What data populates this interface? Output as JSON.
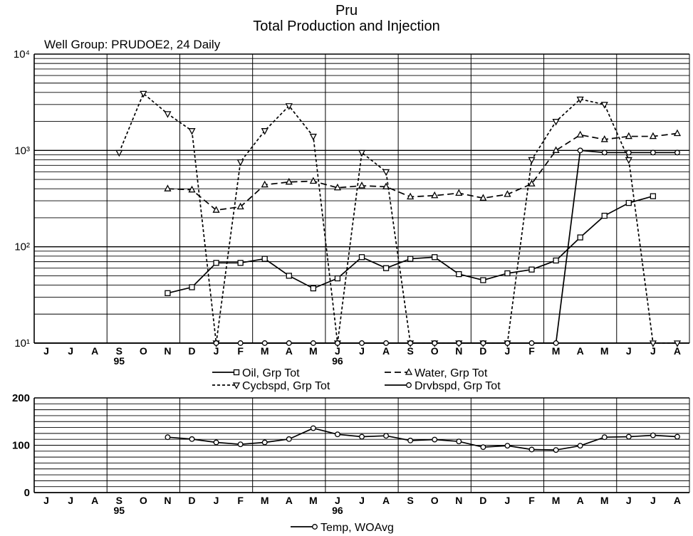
{
  "title": "Pru",
  "subtitle": "Total Production and Injection",
  "group_label": "Well Group: PRUDOE2, 24  Daily",
  "chart_data": [
    {
      "type": "line",
      "yscale": "log",
      "ylim": [
        10,
        10000
      ],
      "y_tick_labels": [
        "10¹",
        "10²",
        "10³",
        "10⁴"
      ],
      "grid": true,
      "months": [
        "J",
        "J",
        "A",
        "S",
        "O",
        "N",
        "D",
        "J",
        "F",
        "M",
        "A",
        "M",
        "J",
        "J",
        "A",
        "S",
        "O",
        "N",
        "D",
        "J",
        "F",
        "M",
        "A",
        "M",
        "J",
        "J",
        "A"
      ],
      "year_labels": [
        {
          "index": 3,
          "text": "95"
        },
        {
          "index": 12,
          "text": "96"
        }
      ],
      "legend": [
        {
          "series": "oil",
          "text": "Oil, Grp Tot"
        },
        {
          "series": "water",
          "text": "Water, Grp Tot"
        },
        {
          "series": "cycbspd",
          "text": "Cycbspd, Grp Tot"
        },
        {
          "series": "drvbspd",
          "text": "Drvbspd, Grp Tot"
        }
      ],
      "series": [
        {
          "id": "oil",
          "marker": "square",
          "dash": "solid",
          "x": [
            5,
            6,
            7,
            8,
            9,
            10,
            11,
            12,
            13,
            14,
            15,
            16,
            17,
            18,
            19,
            20,
            21,
            22,
            23,
            24,
            25
          ],
          "y": [
            33,
            38,
            68,
            68,
            75,
            50,
            37,
            47,
            78,
            60,
            75,
            78,
            52,
            45,
            53,
            58,
            72,
            125,
            210,
            285,
            335
          ]
        },
        {
          "id": "water",
          "marker": "triangle",
          "dash": "longdash",
          "x": [
            5,
            6,
            7,
            8,
            9,
            10,
            11,
            12,
            13,
            14,
            15,
            16,
            17,
            18,
            19,
            20,
            21,
            22,
            23,
            24,
            25,
            26
          ],
          "y": [
            400,
            390,
            240,
            260,
            440,
            470,
            480,
            410,
            430,
            420,
            330,
            340,
            360,
            320,
            350,
            450,
            1000,
            1450,
            1300,
            1400,
            1400,
            1500
          ]
        },
        {
          "id": "cycbspd",
          "marker": "inverted-triangle",
          "dash": "shortdash",
          "x": [
            3,
            4,
            5,
            6,
            7,
            8,
            9,
            10,
            11,
            12,
            13,
            14,
            15,
            16,
            17,
            18,
            19,
            20,
            21,
            22,
            23,
            24,
            25,
            26
          ],
          "y": [
            950,
            3900,
            2400,
            1600,
            10,
            760,
            1600,
            2900,
            1400,
            10,
            950,
            600,
            10,
            10,
            10,
            10,
            10,
            800,
            2000,
            3400,
            3000,
            800,
            10,
            10
          ]
        },
        {
          "id": "drvbspd",
          "marker": "circle",
          "dash": "solid",
          "x": [
            7,
            8,
            9,
            10,
            11,
            12,
            13,
            14,
            15,
            16,
            17,
            18,
            19,
            20,
            21,
            22,
            23,
            24,
            25,
            26
          ],
          "y": [
            10,
            10,
            10,
            10,
            10,
            10,
            10,
            10,
            10,
            10,
            10,
            10,
            10,
            10,
            10,
            1000,
            950,
            950,
            950,
            950
          ]
        }
      ]
    },
    {
      "type": "line",
      "yscale": "linear",
      "ylim": [
        0,
        200
      ],
      "y_tick_labels": [
        "0",
        "100",
        "200"
      ],
      "grid": true,
      "months": [
        "J",
        "J",
        "A",
        "S",
        "O",
        "N",
        "D",
        "J",
        "F",
        "M",
        "A",
        "M",
        "J",
        "J",
        "A",
        "S",
        "O",
        "N",
        "D",
        "J",
        "F",
        "M",
        "A",
        "M",
        "J",
        "J",
        "A"
      ],
      "year_labels": [
        {
          "index": 3,
          "text": "95"
        },
        {
          "index": 12,
          "text": "96"
        }
      ],
      "legend": [
        {
          "series": "temp",
          "text": "Temp, WOAvg"
        }
      ],
      "series": [
        {
          "id": "temp",
          "marker": "circle",
          "dash": "solid",
          "x": [
            5,
            6,
            7,
            8,
            9,
            10,
            11,
            12,
            13,
            14,
            15,
            16,
            17,
            18,
            19,
            20,
            21,
            22,
            23,
            24,
            25,
            26
          ],
          "y": [
            117,
            113,
            106,
            102,
            106,
            113,
            136,
            123,
            118,
            120,
            110,
            112,
            108,
            96,
            99,
            91,
            90,
            99,
            117,
            118,
            121,
            118
          ]
        }
      ]
    }
  ]
}
